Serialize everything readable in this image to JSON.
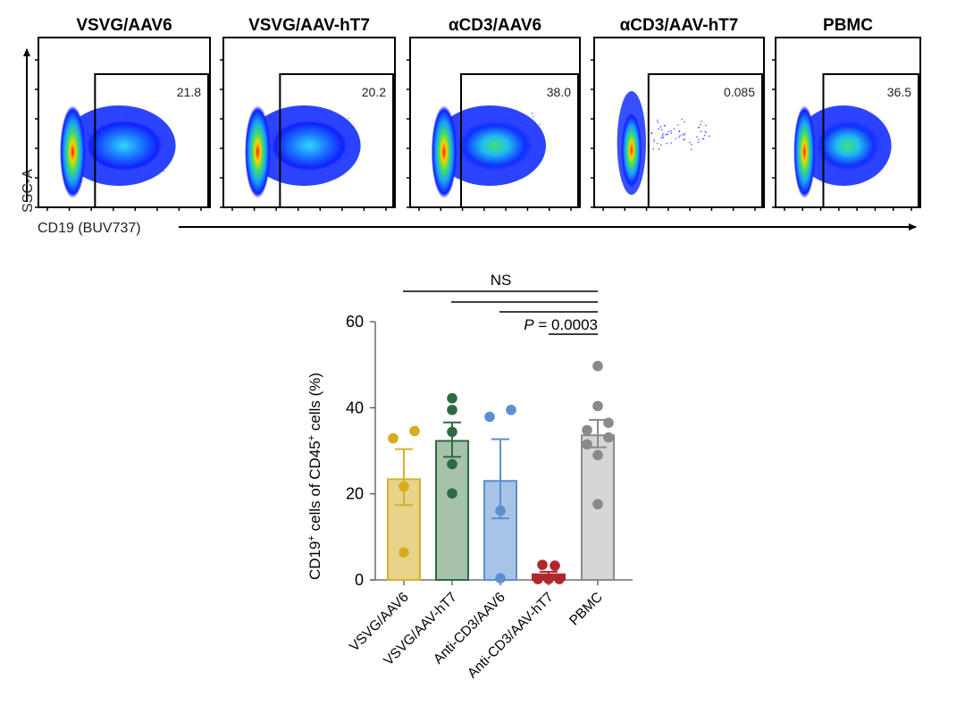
{
  "flow_panels": {
    "x_axis_label": "CD19 (BUV737)",
    "y_axis_label": "SSC-A",
    "panels": [
      {
        "title": "VSVG/AAV6",
        "gate_value": "21.8",
        "population": "broad"
      },
      {
        "title": "VSVG/AAV-hT7",
        "gate_value": "20.2",
        "population": "broad"
      },
      {
        "title": "αCD3/AAV6",
        "gate_value": "38.0",
        "population": "broad"
      },
      {
        "title": "αCD3/AAV-hT7",
        "gate_value": "0.085",
        "population": "negative"
      },
      {
        "title": "PBMC",
        "gate_value": "36.5",
        "population": "broad"
      }
    ]
  },
  "chart_data": {
    "type": "bar",
    "title": "",
    "xlabel": "",
    "ylabel": "CD19⁺ cells of CD45⁺ cells (%)",
    "ylabel_parts": [
      "CD19",
      "+",
      " cells of CD45",
      "+",
      " cells (%)"
    ],
    "ylim": [
      0,
      60
    ],
    "yticks": [
      0,
      20,
      40,
      60
    ],
    "grid": false,
    "categories": [
      "VSVG/AAV6",
      "VSVG/AAV-hT7",
      "Anti-CD3/AAV6",
      "Anti-CD3/AAV-hT7",
      "PBMC"
    ],
    "colors": {
      "fill": [
        "#e8d488",
        "#a6c2ab",
        "#a7c4e6",
        "#c0323c",
        "#d6d6d6"
      ],
      "stroke": [
        "#d6b12e",
        "#2e6a44",
        "#5b8fd0",
        "#b0282f",
        "#8a8a8a"
      ],
      "dot": [
        "#d6ac20",
        "#2e6a44",
        "#5b8fd0",
        "#b0282f",
        "#8a8a8a"
      ]
    },
    "means": [
      23.4,
      32.3,
      23.0,
      1.3,
      33.6
    ],
    "sem": [
      [
        17.4,
        30.4
      ],
      [
        28.6,
        36.6
      ],
      [
        14.3,
        32.7
      ],
      [
        0.6,
        1.9
      ],
      [
        30.8,
        37.2
      ]
    ],
    "points": [
      [
        32.9,
        34.6,
        21.7,
        6.4
      ],
      [
        42.2,
        39.5,
        34.4,
        26.9,
        20.1
      ],
      [
        37.9,
        39.5,
        16.1,
        0.4
      ],
      [
        3.5,
        3.3,
        0.2,
        0.2,
        0.2
      ],
      [
        49.7,
        40.4,
        36.5,
        34.8,
        33.1,
        31.5,
        29.0,
        17.6
      ]
    ],
    "significance": [
      {
        "from": 0,
        "to": 4,
        "label": "NS"
      },
      {
        "from": 1,
        "to": 4,
        "label": ""
      },
      {
        "from": 2,
        "to": 4,
        "label": ""
      },
      {
        "from": 3,
        "to": 4,
        "label": "P = 0.0003"
      }
    ],
    "sig_labels": {
      "ns": "NS",
      "p_italic": "P",
      "p_rest": " = 0.0003"
    }
  }
}
